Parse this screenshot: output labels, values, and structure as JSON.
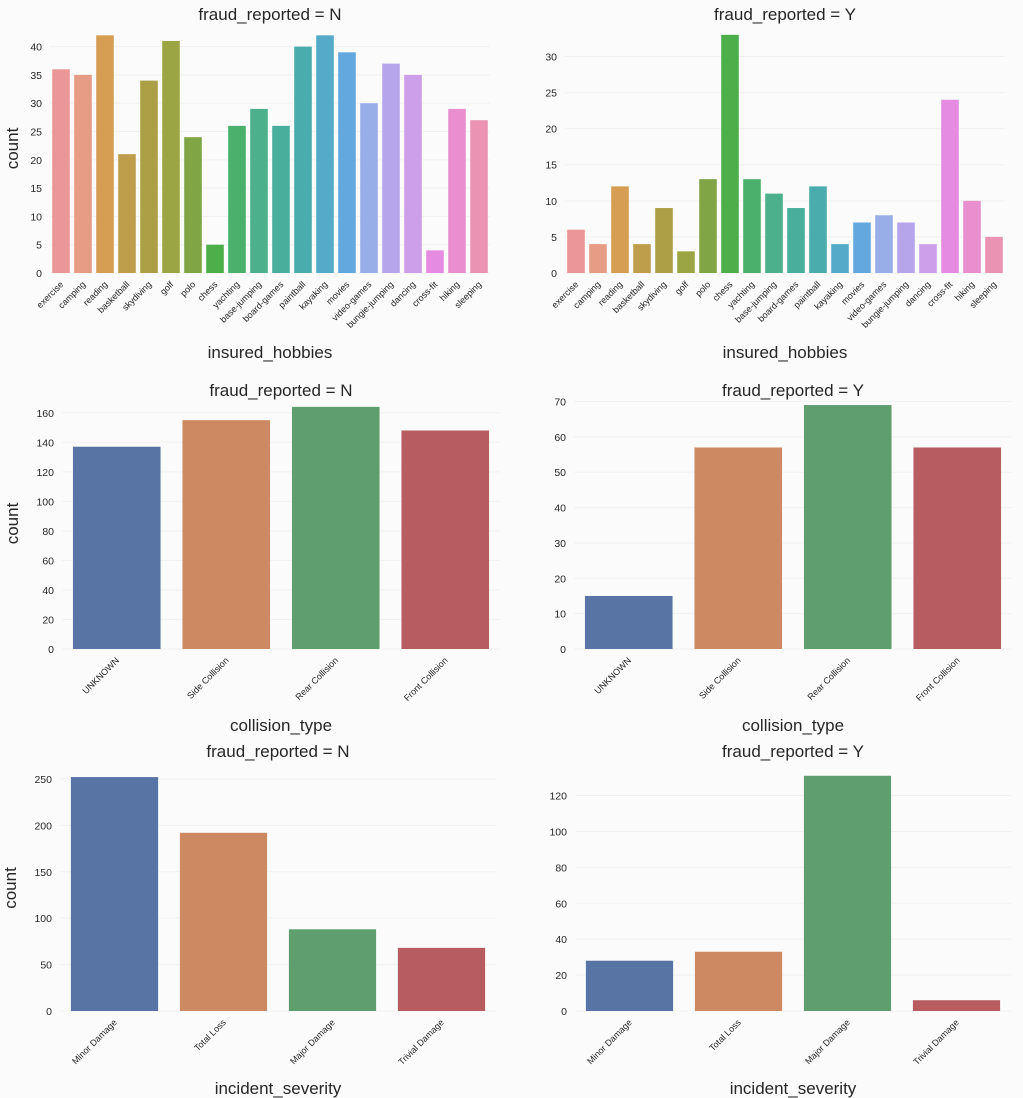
{
  "chart_data": [
    {
      "type": "bar",
      "title": "fraud_reported = N",
      "xlabel": "insured_hobbies",
      "ylabel": "count",
      "ylim": [
        0,
        44
      ],
      "yticks": [
        0,
        5,
        10,
        15,
        20,
        25,
        30,
        35,
        40
      ],
      "categories": [
        "exercise",
        "camping",
        "reading",
        "basketball",
        "skydiving",
        "golf",
        "polo",
        "chess",
        "yachting",
        "base-jumping",
        "board-games",
        "paintball",
        "kayaking",
        "movies",
        "video-games",
        "bungie-jumping",
        "dancing",
        "cross-fit",
        "hiking",
        "sleeping"
      ],
      "values": [
        36,
        35,
        42,
        21,
        34,
        41,
        24,
        5,
        26,
        29,
        26,
        40,
        42,
        39,
        30,
        37,
        35,
        4,
        29,
        27
      ],
      "colors": [
        "#eb9798",
        "#e69c85",
        "#d69e52",
        "#bf9e4b",
        "#aba046",
        "#9ba543",
        "#7fa545",
        "#4daf4a",
        "#4bb06c",
        "#4bb08b",
        "#4aae9c",
        "#4aacad",
        "#55a9c9",
        "#63a9e0",
        "#97aee8",
        "#b6a5eb",
        "#cd9eea",
        "#e58be1",
        "#e98ecf",
        "#eb93b3"
      ]
    },
    {
      "type": "bar",
      "title": "fraud_reported = Y",
      "xlabel": "insured_hobbies",
      "ylabel": "",
      "ylim": [
        0,
        34.5
      ],
      "yticks": [
        0,
        5,
        10,
        15,
        20,
        25,
        30
      ],
      "categories": [
        "exercise",
        "camping",
        "reading",
        "basketball",
        "skydiving",
        "golf",
        "polo",
        "chess",
        "yachting",
        "base-jumping",
        "board-games",
        "paintball",
        "kayaking",
        "movies",
        "video-games",
        "bungie-jumping",
        "dancing",
        "cross-fit",
        "hiking",
        "sleeping"
      ],
      "values": [
        6,
        4,
        12,
        4,
        9,
        3,
        13,
        33,
        13,
        11,
        9,
        12,
        4,
        7,
        8,
        7,
        4,
        24,
        10,
        5
      ],
      "colors": [
        "#eb9798",
        "#e69c85",
        "#d69e52",
        "#bf9e4b",
        "#aba046",
        "#9ba543",
        "#7fa545",
        "#4daf4a",
        "#4bb06c",
        "#4bb08b",
        "#4aae9c",
        "#4aacad",
        "#55a9c9",
        "#63a9e0",
        "#97aee8",
        "#b6a5eb",
        "#cd9eea",
        "#e58be1",
        "#e98ecf",
        "#eb93b3"
      ]
    },
    {
      "type": "bar",
      "title": "fraud_reported = N",
      "xlabel": "collision_type",
      "ylabel": "count",
      "ylim": [
        0,
        170
      ],
      "yticks": [
        0,
        20,
        40,
        60,
        80,
        100,
        120,
        140,
        160
      ],
      "categories": [
        "UNKNOWN",
        "Side Collision",
        "Rear Collision",
        "Front Collision"
      ],
      "values": [
        137,
        155,
        164,
        148
      ],
      "colors": [
        "#5874a4",
        "#cd8962",
        "#5f9e6e",
        "#b75d61"
      ]
    },
    {
      "type": "bar",
      "title": "fraud_reported = Y",
      "xlabel": "collision_type",
      "ylabel": "",
      "ylim": [
        0,
        71
      ],
      "yticks": [
        0,
        10,
        20,
        30,
        40,
        50,
        60,
        70
      ],
      "categories": [
        "UNKNOWN",
        "Side Collision",
        "Rear Collision",
        "Front Collision"
      ],
      "values": [
        15,
        57,
        69,
        57
      ],
      "colors": [
        "#5874a4",
        "#cd8962",
        "#5f9e6e",
        "#b75d61"
      ]
    },
    {
      "type": "bar",
      "title": "fraud_reported = N",
      "xlabel": "incident_severity",
      "ylabel": "count",
      "ylim": [
        0,
        265
      ],
      "yticks": [
        0,
        50,
        100,
        150,
        200,
        250
      ],
      "categories": [
        "Minor Damage",
        "Total Loss",
        "Major Damage",
        "Trivial Damage"
      ],
      "values": [
        252,
        192,
        88,
        68
      ],
      "colors": [
        "#5874a4",
        "#cd8962",
        "#5f9e6e",
        "#b75d61"
      ]
    },
    {
      "type": "bar",
      "title": "fraud_reported = Y",
      "xlabel": "incident_severity",
      "ylabel": "",
      "ylim": [
        0,
        137
      ],
      "yticks": [
        0,
        20,
        40,
        60,
        80,
        100,
        120
      ],
      "categories": [
        "Minor Damage",
        "Total Loss",
        "Major Damage",
        "Trivial Damage"
      ],
      "values": [
        28,
        33,
        131,
        6
      ],
      "colors": [
        "#5874a4",
        "#cd8962",
        "#5f9e6e",
        "#b75d61"
      ]
    }
  ]
}
